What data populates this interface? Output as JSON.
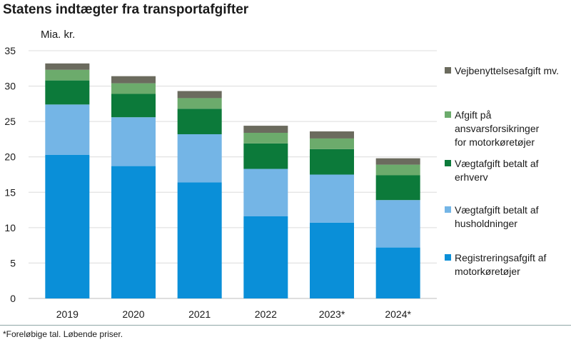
{
  "chart_data": {
    "type": "bar",
    "stacked": true,
    "title": "Statens indtægter fra transportafgifter",
    "ylabel": "Mia. kr.",
    "xlabel": "",
    "ylim": [
      0,
      35
    ],
    "yticks": [
      0,
      5,
      10,
      15,
      20,
      25,
      30,
      35
    ],
    "grid": true,
    "legend_position": "right",
    "categories": [
      "2019",
      "2020",
      "2021",
      "2022",
      "2023*",
      "2024*"
    ],
    "series": [
      {
        "name": "Registreringsafgift af motorkøretøjer",
        "color": "#0a8fd8",
        "values": [
          20.3,
          18.7,
          16.4,
          11.6,
          10.7,
          7.2
        ]
      },
      {
        "name": "Vægtafgift betalt af husholdninger",
        "color": "#74b5e6",
        "values": [
          7.1,
          6.9,
          6.8,
          6.7,
          6.8,
          6.7
        ]
      },
      {
        "name": "Vægtafgift betalt af erhverv",
        "color": "#0c7a3a",
        "values": [
          3.4,
          3.3,
          3.6,
          3.6,
          3.6,
          3.5
        ]
      },
      {
        "name": "Afgift på ansvarsforsikringer for motorkøretøjer",
        "color": "#6cab6c",
        "values": [
          1.5,
          1.5,
          1.5,
          1.5,
          1.5,
          1.5
        ]
      },
      {
        "name": "Vejbenyttelsesafgift mv.",
        "color": "#6b6b5e",
        "values": [
          0.9,
          1.0,
          1.0,
          1.0,
          1.0,
          0.9
        ]
      }
    ],
    "legend_lines": [
      [
        "Vejbenyttelsesafgift mv."
      ],
      [
        "Afgift på",
        "ansvarsforsikringer",
        "for motorkøretøjer"
      ],
      [
        "Vægtafgift betalt af",
        "erhverv"
      ],
      [
        "Vægtafgift betalt af",
        "husholdninger"
      ],
      [
        "Registreringsafgift af",
        "motorkøretøjer"
      ]
    ]
  },
  "footnote": "*Foreløbige tal. Løbende priser."
}
